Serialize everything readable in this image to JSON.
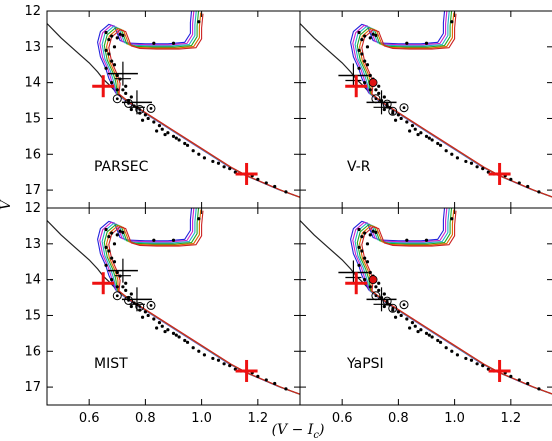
{
  "chart_data": {
    "type": "scatter",
    "layout": "2x2 grid of color-magnitude diagrams with shared axes",
    "xlabel": "(V − I_c)",
    "ylabel": "V",
    "xlim": [
      0.45,
      1.35
    ],
    "ylim": [
      17.5,
      12.0
    ],
    "y_inverted": true,
    "xticks": [
      "0.6",
      "0.8",
      "1.0",
      "1.2"
    ],
    "yticks": [
      "12",
      "13",
      "14",
      "15",
      "16",
      "17"
    ],
    "isochrone_colors": [
      "#2222dd",
      "#cc22cc",
      "#22aacc",
      "#22aa22",
      "#dd6600",
      "#cc2222"
    ],
    "panels": [
      {
        "label": "PARSEC",
        "open_circles": [
          [
            0.7,
            14.45
          ],
          [
            0.74,
            14.58
          ],
          [
            0.78,
            14.75
          ],
          [
            0.82,
            14.72
          ]
        ],
        "red_dots": [],
        "red_crosses": [
          [
            0.65,
            14.1
          ],
          [
            1.16,
            16.55
          ]
        ],
        "error_crosses": [
          [
            0.72,
            13.75
          ],
          [
            0.77,
            14.55
          ]
        ]
      },
      {
        "label": "V-R",
        "open_circles": [
          [
            0.72,
            14.45
          ],
          [
            0.76,
            14.6
          ],
          [
            0.78,
            14.8
          ],
          [
            0.82,
            14.7
          ]
        ],
        "red_dots": [
          [
            0.71,
            14.0
          ]
        ],
        "red_crosses": [
          [
            0.65,
            14.1
          ],
          [
            1.16,
            16.55
          ]
        ],
        "error_crosses": [
          [
            0.64,
            13.8
          ],
          [
            0.74,
            14.55
          ]
        ]
      },
      {
        "label": "MIST",
        "open_circles": [
          [
            0.7,
            14.45
          ],
          [
            0.74,
            14.58
          ],
          [
            0.78,
            14.75
          ],
          [
            0.82,
            14.72
          ]
        ],
        "red_dots": [],
        "red_crosses": [
          [
            0.65,
            14.1
          ],
          [
            1.16,
            16.55
          ]
        ],
        "error_crosses": [
          [
            0.72,
            13.75
          ],
          [
            0.77,
            14.55
          ]
        ]
      },
      {
        "label": "YaPSI",
        "open_circles": [
          [
            0.72,
            14.45
          ],
          [
            0.76,
            14.6
          ],
          [
            0.78,
            14.8
          ],
          [
            0.82,
            14.7
          ]
        ],
        "red_dots": [
          [
            0.71,
            14.0
          ]
        ],
        "red_crosses": [
          [
            0.65,
            14.1
          ],
          [
            1.16,
            16.55
          ]
        ],
        "error_crosses": [
          [
            0.64,
            13.8
          ],
          [
            0.74,
            14.55
          ]
        ]
      }
    ],
    "black_points": [
      [
        0.66,
        12.6
      ],
      [
        0.67,
        12.8
      ],
      [
        0.68,
        12.7
      ],
      [
        0.69,
        13.0
      ],
      [
        0.7,
        12.75
      ],
      [
        0.71,
        12.65
      ],
      [
        0.72,
        12.68
      ],
      [
        0.66,
        13.1
      ],
      [
        0.67,
        13.2
      ],
      [
        0.68,
        13.4
      ],
      [
        0.66,
        13.6
      ],
      [
        0.69,
        13.5
      ],
      [
        0.7,
        13.8
      ],
      [
        0.71,
        13.9
      ],
      [
        0.68,
        14.0
      ],
      [
        0.7,
        14.2
      ],
      [
        0.72,
        14.2
      ],
      [
        0.73,
        14.1
      ],
      [
        0.74,
        14.5
      ],
      [
        0.75,
        14.4
      ],
      [
        0.76,
        14.65
      ],
      [
        0.77,
        14.7
      ],
      [
        0.78,
        14.85
      ],
      [
        0.8,
        14.9
      ],
      [
        0.81,
        15.0
      ],
      [
        0.83,
        15.1
      ],
      [
        0.85,
        15.2
      ],
      [
        0.86,
        15.3
      ],
      [
        0.88,
        15.4
      ],
      [
        0.9,
        15.5
      ],
      [
        0.92,
        15.6
      ],
      [
        0.94,
        15.7
      ],
      [
        0.95,
        15.75
      ],
      [
        0.97,
        15.9
      ],
      [
        0.99,
        16.0
      ],
      [
        1.01,
        16.1
      ],
      [
        1.04,
        16.2
      ],
      [
        1.06,
        16.25
      ],
      [
        1.08,
        16.35
      ],
      [
        1.1,
        16.4
      ],
      [
        1.12,
        16.5
      ],
      [
        1.14,
        16.55
      ],
      [
        1.18,
        16.6
      ],
      [
        1.2,
        16.7
      ],
      [
        1.23,
        16.8
      ],
      [
        1.26,
        16.9
      ],
      [
        1.3,
        17.05
      ],
      [
        0.83,
        12.9
      ],
      [
        0.9,
        12.9
      ],
      [
        0.99,
        12.3
      ],
      [
        0.79,
        15.05
      ],
      [
        0.84,
        15.35
      ],
      [
        0.87,
        15.45
      ],
      [
        0.91,
        15.55
      ],
      [
        0.75,
        14.75
      ],
      [
        0.73,
        14.3
      ]
    ]
  }
}
